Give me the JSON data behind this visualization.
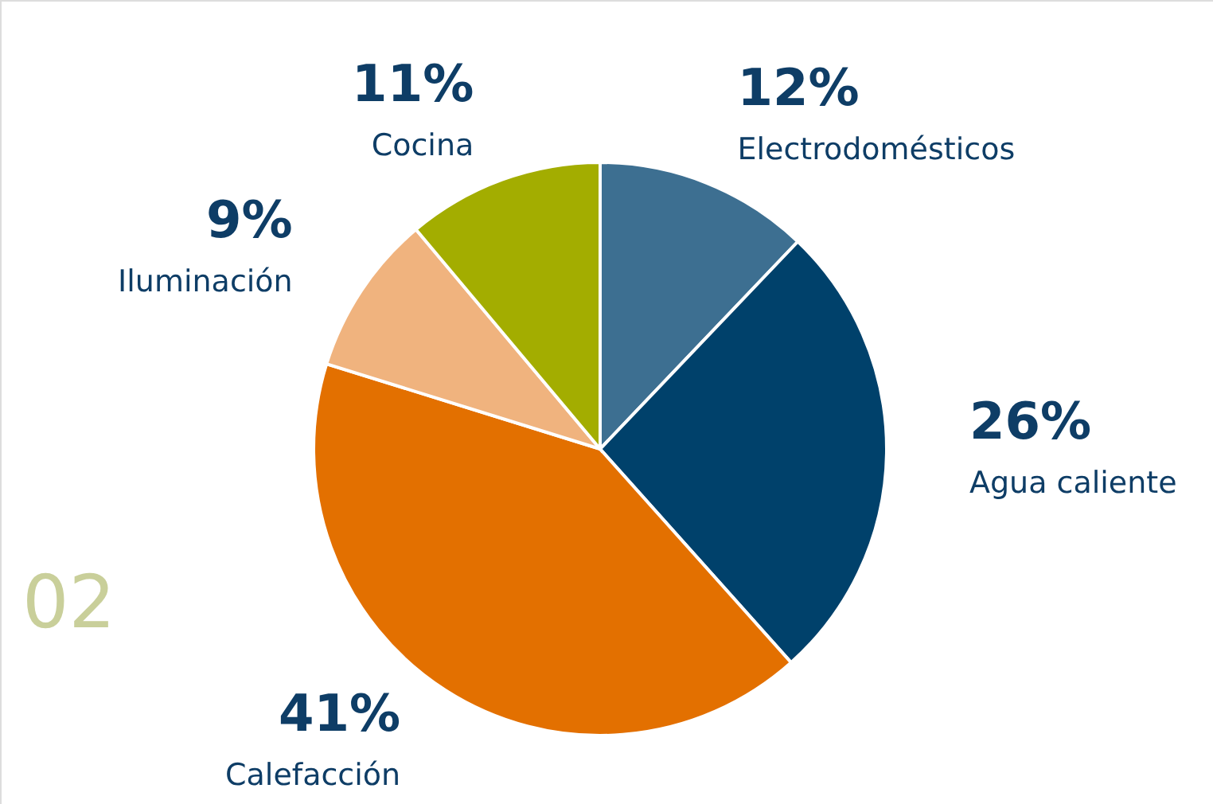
{
  "chart_data": {
    "type": "pie",
    "categories": [
      "Electrodomésticos",
      "Agua caliente",
      "Calefacción",
      "Iluminación",
      "Cocina"
    ],
    "values": [
      12,
      26,
      41,
      9,
      11
    ],
    "value_labels": [
      "12%",
      "26%",
      "41%",
      "9%",
      "11%"
    ],
    "colors": [
      "#3d6f91",
      "#00416b",
      "#e37000",
      "#f0b37e",
      "#a3ad00"
    ],
    "annotations": [
      "02"
    ]
  }
}
